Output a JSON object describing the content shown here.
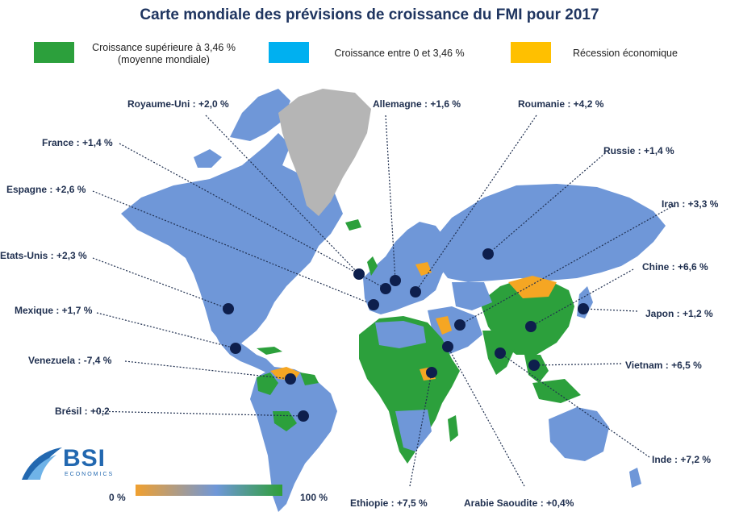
{
  "title": "Carte mondiale des prévisions de croissance du FMI pour 2017",
  "legend": [
    {
      "label_line1": "Croissance supérieure à 3,46 %",
      "label_line2": "(moyenne mondiale)",
      "color": "#2ca03c"
    },
    {
      "label_line1": "Croissance entre 0 et 3,46 %",
      "label_line2": "",
      "color": "#00b0f0"
    },
    {
      "label_line1": "Récession économique",
      "label_line2": "",
      "color": "#ffc000"
    }
  ],
  "countries": [
    {
      "name": "Royaume-Uni",
      "label": "Royaume-Uni : +2,0 %",
      "growth": 2.0
    },
    {
      "name": "Allemagne",
      "label": "Allemagne : +1,6 %",
      "growth": 1.6
    },
    {
      "name": "Roumanie",
      "label": "Roumanie : +4,2 %",
      "growth": 4.2
    },
    {
      "name": "France",
      "label": "France : +1,4 %",
      "growth": 1.4
    },
    {
      "name": "Russie",
      "label": "Russie : +1,4 %",
      "growth": 1.4
    },
    {
      "name": "Espagne",
      "label": "Espagne : +2,6 %",
      "growth": 2.6
    },
    {
      "name": "Iran",
      "label": "Iran : +3,3 %",
      "growth": 3.3
    },
    {
      "name": "Etats-Unis",
      "label": "Etats-Unis : +2,3 %",
      "growth": 2.3
    },
    {
      "name": "Chine",
      "label": "Chine : +6,6 %",
      "growth": 6.6
    },
    {
      "name": "Mexique",
      "label": "Mexique : +1,7 %",
      "growth": 1.7
    },
    {
      "name": "Japon",
      "label": "Japon : +1,2 %",
      "growth": 1.2
    },
    {
      "name": "Venezuela",
      "label": "Venezuela : -7,4 %",
      "growth": -7.4
    },
    {
      "name": "Vietnam",
      "label": "Vietnam : +6,5 %",
      "growth": 6.5
    },
    {
      "name": "Brésil",
      "label": "Brésil : +0,2",
      "growth": 0.2
    },
    {
      "name": "Inde",
      "label": "Inde : +7,2 %",
      "growth": 7.2
    },
    {
      "name": "Ethiopie",
      "label": "Ethiopie : +7,5 %",
      "growth": 7.5
    },
    {
      "name": "Arabie Saoudite",
      "label": "Arabie Saoudite : +0,4%",
      "growth": 0.4
    }
  ],
  "scale": {
    "min_label": "0 %",
    "max_label": "100 %"
  },
  "logo": {
    "name": "BSI",
    "sub": "ECONOMICS"
  },
  "colors": {
    "title": "#1f3560",
    "dot": "#0e1f4d",
    "base_land": "#6f97d8",
    "green": "#2ca03c",
    "orange": "#f5a623",
    "grey": "#b5b5b5"
  }
}
